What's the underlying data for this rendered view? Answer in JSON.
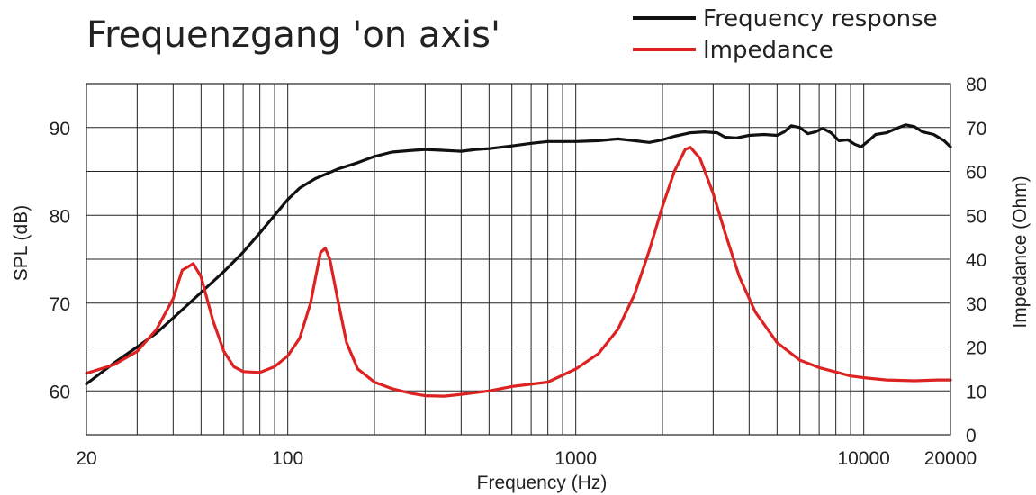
{
  "chart_data": {
    "type": "line",
    "title": "Frequenzgang 'on axis'",
    "xlabel": "Frequency (Hz)",
    "ylabel": "SPL (dB)",
    "y2label": "Impedance (Ohm)",
    "xscale": "log",
    "xlim": [
      20,
      20000
    ],
    "ylim": [
      55,
      95
    ],
    "y2lim": [
      0,
      80
    ],
    "x_ticks": [
      {
        "value": 20,
        "label": "20"
      },
      {
        "value": 100,
        "label": "100"
      },
      {
        "value": 1000,
        "label": "1000"
      },
      {
        "value": 10000,
        "label": "10000"
      },
      {
        "value": 20000,
        "label": "20000"
      }
    ],
    "y_ticks": [
      {
        "value": 60,
        "label": "60"
      },
      {
        "value": 70,
        "label": "70"
      },
      {
        "value": 80,
        "label": "80"
      },
      {
        "value": 90,
        "label": "90"
      }
    ],
    "y2_ticks": [
      {
        "value": 0,
        "label": "0"
      },
      {
        "value": 10,
        "label": "10"
      },
      {
        "value": 20,
        "label": "20"
      },
      {
        "value": 30,
        "label": "30"
      },
      {
        "value": 40,
        "label": "40"
      },
      {
        "value": 50,
        "label": "50"
      },
      {
        "value": 60,
        "label": "60"
      },
      {
        "value": 70,
        "label": "70"
      },
      {
        "value": 80,
        "label": "80"
      }
    ],
    "grid": true,
    "legend_position": "top-right",
    "series": [
      {
        "name": "Frequency response",
        "axis": "left",
        "color": "#111111",
        "points": [
          [
            20,
            60.8
          ],
          [
            25,
            63.2
          ],
          [
            30,
            65.0
          ],
          [
            35,
            66.6
          ],
          [
            40,
            68.3
          ],
          [
            50,
            71.2
          ],
          [
            60,
            73.6
          ],
          [
            70,
            75.8
          ],
          [
            80,
            78.0
          ],
          [
            90,
            80.0
          ],
          [
            100,
            81.8
          ],
          [
            110,
            83.1
          ],
          [
            125,
            84.2
          ],
          [
            150,
            85.3
          ],
          [
            175,
            86.0
          ],
          [
            200,
            86.7
          ],
          [
            230,
            87.2
          ],
          [
            270,
            87.4
          ],
          [
            300,
            87.5
          ],
          [
            350,
            87.4
          ],
          [
            400,
            87.3
          ],
          [
            450,
            87.5
          ],
          [
            500,
            87.6
          ],
          [
            600,
            87.9
          ],
          [
            700,
            88.2
          ],
          [
            800,
            88.4
          ],
          [
            900,
            88.4
          ],
          [
            1000,
            88.4
          ],
          [
            1200,
            88.5
          ],
          [
            1400,
            88.7
          ],
          [
            1600,
            88.5
          ],
          [
            1800,
            88.3
          ],
          [
            2000,
            88.6
          ],
          [
            2200,
            89.0
          ],
          [
            2500,
            89.4
          ],
          [
            2800,
            89.5
          ],
          [
            3100,
            89.4
          ],
          [
            3300,
            88.9
          ],
          [
            3600,
            88.8
          ],
          [
            4000,
            89.1
          ],
          [
            4500,
            89.2
          ],
          [
            5000,
            89.1
          ],
          [
            5300,
            89.5
          ],
          [
            5600,
            90.2
          ],
          [
            6000,
            90.0
          ],
          [
            6400,
            89.3
          ],
          [
            6800,
            89.5
          ],
          [
            7200,
            89.9
          ],
          [
            7700,
            89.4
          ],
          [
            8200,
            88.5
          ],
          [
            8800,
            88.6
          ],
          [
            9300,
            88.1
          ],
          [
            9800,
            87.8
          ],
          [
            10400,
            88.5
          ],
          [
            11000,
            89.2
          ],
          [
            12000,
            89.4
          ],
          [
            13000,
            89.9
          ],
          [
            14000,
            90.3
          ],
          [
            15000,
            90.1
          ],
          [
            16000,
            89.5
          ],
          [
            17500,
            89.2
          ],
          [
            19000,
            88.5
          ],
          [
            20000,
            87.8
          ]
        ]
      },
      {
        "name": "Impedance",
        "axis": "right",
        "color": "#dd2222",
        "points": [
          [
            20,
            14.0
          ],
          [
            25,
            16.0
          ],
          [
            30,
            19.0
          ],
          [
            35,
            24.0
          ],
          [
            40,
            31.0
          ],
          [
            43,
            37.5
          ],
          [
            47,
            39.0
          ],
          [
            50,
            36.0
          ],
          [
            55,
            26.0
          ],
          [
            60,
            19.0
          ],
          [
            65,
            15.5
          ],
          [
            70,
            14.4
          ],
          [
            80,
            14.2
          ],
          [
            90,
            15.5
          ],
          [
            100,
            18.0
          ],
          [
            110,
            22.0
          ],
          [
            120,
            30.0
          ],
          [
            125,
            36.0
          ],
          [
            130,
            41.5
          ],
          [
            135,
            42.5
          ],
          [
            140,
            40.0
          ],
          [
            150,
            30.0
          ],
          [
            160,
            21.0
          ],
          [
            175,
            15.0
          ],
          [
            200,
            12.0
          ],
          [
            230,
            10.5
          ],
          [
            270,
            9.4
          ],
          [
            300,
            8.9
          ],
          [
            350,
            8.8
          ],
          [
            400,
            9.2
          ],
          [
            500,
            10.0
          ],
          [
            600,
            11.0
          ],
          [
            800,
            12.0
          ],
          [
            1000,
            15.0
          ],
          [
            1200,
            18.5
          ],
          [
            1400,
            24.0
          ],
          [
            1600,
            32.0
          ],
          [
            1800,
            42.0
          ],
          [
            2000,
            52.0
          ],
          [
            2200,
            60.0
          ],
          [
            2400,
            65.0
          ],
          [
            2500,
            65.5
          ],
          [
            2700,
            63.0
          ],
          [
            3000,
            55.0
          ],
          [
            3300,
            46.0
          ],
          [
            3700,
            36.0
          ],
          [
            4200,
            28.0
          ],
          [
            5000,
            21.0
          ],
          [
            6000,
            17.0
          ],
          [
            7000,
            15.3
          ],
          [
            8000,
            14.3
          ],
          [
            9000,
            13.4
          ],
          [
            10000,
            13.0
          ],
          [
            12000,
            12.5
          ],
          [
            15000,
            12.3
          ],
          [
            18000,
            12.5
          ],
          [
            20000,
            12.5
          ]
        ]
      }
    ]
  }
}
